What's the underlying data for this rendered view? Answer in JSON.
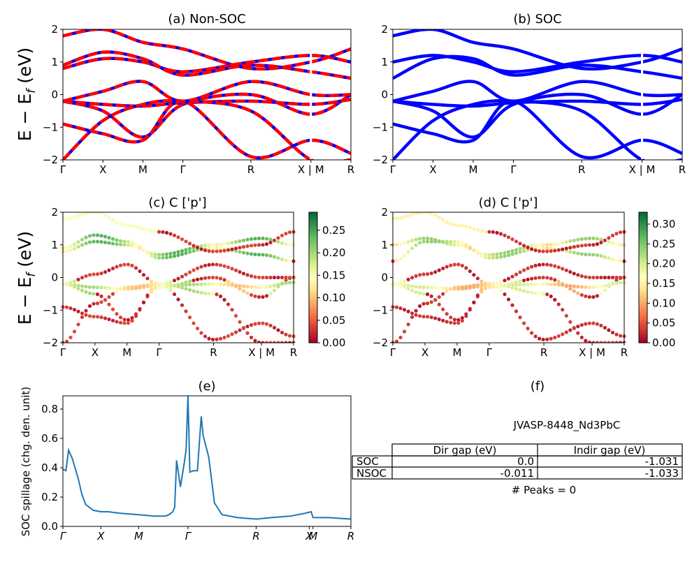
{
  "colors": {
    "red": "#ff0000",
    "blue": "#0000ff",
    "line": "#1f77b4",
    "axis": "#000000"
  },
  "colormap": "RdYlGn",
  "axis_label": "E − E",
  "axis_label_sub": "f",
  "axis_label_unit": " (eV)",
  "kpath_labels": [
    "Γ",
    "X",
    "M",
    "Γ",
    "R",
    "X | M",
    "R"
  ],
  "kpath_labels_e": [
    "Γ",
    "X",
    "M",
    "Γ",
    "R",
    "X",
    "M",
    "R"
  ],
  "panels": {
    "a": {
      "title": "(a) Non-SOC"
    },
    "b": {
      "title": "(b) SOC"
    },
    "c": {
      "title": "(c)  C ['p']",
      "cb_ticks": [
        "0.00",
        "0.05",
        "0.10",
        "0.15",
        "0.20",
        "0.25"
      ]
    },
    "d": {
      "title": "(d) C ['p']",
      "cb_ticks": [
        "0.00",
        "0.05",
        "0.10",
        "0.15",
        "0.20",
        "0.25",
        "0.30"
      ]
    },
    "e": {
      "title": "(e)",
      "ylabel": "SOC spillage (chg. den. unit)"
    },
    "f": {
      "title": "(f)"
    }
  },
  "info": {
    "material": "JVASP-8448_Nd3PbC",
    "headers": [
      "Dir gap (eV)",
      "Indir gap (eV)"
    ],
    "rows": [
      {
        "label": "SOC",
        "dir": "0.0",
        "indir": "-1.031"
      },
      {
        "label": "NSOC",
        "dir": "-0.011",
        "indir": "-1.033"
      }
    ],
    "peaks": "# Peaks = 0"
  },
  "chart_data": [
    {
      "panel": "a",
      "type": "line",
      "title": "(a) Non-SOC",
      "ylabel": "E − E_f (eV)",
      "ylim": [
        -2,
        2
      ],
      "yticks": [
        -2,
        -1,
        0,
        1,
        2
      ],
      "x": [
        0,
        1,
        2,
        3,
        4.7,
        6.2,
        7.2
      ],
      "x_tick_labels": [
        "Γ",
        "X",
        "M",
        "Γ",
        "R",
        "X | M",
        "R"
      ],
      "series": [
        {
          "y": [
            -0.2,
            -0.5,
            -1.3,
            -0.3,
            0.0,
            -0.6,
            0.0
          ]
        },
        {
          "y": [
            -0.2,
            -0.3,
            -0.35,
            -0.25,
            -0.2,
            -0.3,
            -0.15
          ]
        },
        {
          "y": [
            -0.2,
            0.1,
            0.4,
            -0.2,
            0.4,
            0.0,
            0.0
          ]
        },
        {
          "y": [
            0.8,
            1.1,
            1.0,
            0.7,
            1.0,
            1.2,
            1.0
          ]
        },
        {
          "y": [
            0.9,
            1.3,
            1.1,
            0.6,
            0.9,
            0.7,
            0.5
          ]
        },
        {
          "y": [
            -0.9,
            -1.2,
            -1.4,
            -0.2,
            -1.9,
            -1.4,
            -1.8
          ]
        },
        {
          "y": [
            1.8,
            2.0,
            1.6,
            1.4,
            0.8,
            1.0,
            1.4
          ]
        },
        {
          "y": [
            -2.0,
            -0.8,
            -0.3,
            -0.2,
            -0.5,
            -2.0,
            -2.0
          ]
        }
      ]
    },
    {
      "panel": "b",
      "type": "line",
      "title": "(b) SOC",
      "ylim": [
        -2,
        2
      ],
      "yticks": [
        -2,
        -1,
        0,
        1,
        2
      ],
      "x": [
        0,
        1,
        2,
        3,
        4.7,
        6.2,
        7.2
      ],
      "x_tick_labels": [
        "Γ",
        "X",
        "M",
        "Γ",
        "R",
        "X | M",
        "R"
      ],
      "series": [
        {
          "y": [
            -0.2,
            -0.5,
            -1.3,
            -0.3,
            0.0,
            -0.6,
            0.0
          ]
        },
        {
          "y": [
            -0.2,
            -0.3,
            -0.35,
            -0.25,
            -0.2,
            -0.3,
            -0.15
          ]
        },
        {
          "y": [
            -0.2,
            0.1,
            0.4,
            -0.2,
            0.4,
            0.0,
            0.0
          ]
        },
        {
          "y": [
            1.0,
            1.2,
            1.0,
            0.7,
            1.0,
            1.2,
            1.0
          ]
        },
        {
          "y": [
            0.5,
            1.1,
            1.1,
            0.6,
            0.9,
            0.7,
            0.5
          ]
        },
        {
          "y": [
            -0.9,
            -1.2,
            -1.4,
            -0.2,
            -1.9,
            -1.4,
            -1.8
          ]
        },
        {
          "y": [
            1.8,
            2.0,
            1.6,
            1.4,
            0.8,
            1.0,
            1.4
          ]
        },
        {
          "y": [
            -2.0,
            -0.8,
            -0.3,
            -0.2,
            -0.5,
            -2.0,
            -2.0
          ]
        }
      ]
    },
    {
      "panel": "c",
      "type": "scatter",
      "title": "(c)  C ['p']",
      "ylim": [
        -2,
        2
      ],
      "colorbar_range": [
        0,
        0.29
      ],
      "note": "band points colored by C p-orbital weight"
    },
    {
      "panel": "d",
      "type": "scatter",
      "title": "(d) C ['p']",
      "ylim": [
        -2,
        2
      ],
      "colorbar_range": [
        0,
        0.33
      ],
      "note": "band points colored by C p-orbital weight"
    },
    {
      "panel": "e",
      "type": "line",
      "title": "(e)",
      "ylabel": "SOC spillage (chg. den. unit)",
      "ylim": [
        0,
        0.89
      ],
      "yticks": [
        0.0,
        0.2,
        0.4,
        0.6,
        0.8
      ],
      "x_tick_labels": [
        "Γ",
        "X",
        "M",
        "Γ",
        "R",
        "X",
        "M",
        "R"
      ],
      "x_ticks": [
        0,
        1,
        2,
        3.3,
        5.1,
        6.5,
        6.6,
        7.6
      ],
      "x": [
        0,
        0.08,
        0.15,
        0.25,
        0.4,
        0.5,
        0.6,
        0.8,
        1.0,
        1.2,
        1.5,
        2.0,
        2.4,
        2.7,
        2.8,
        2.9,
        2.95,
        3.0,
        3.1,
        3.2,
        3.25,
        3.3,
        3.35,
        3.45,
        3.55,
        3.65,
        3.7,
        3.85,
        4.0,
        4.2,
        4.6,
        5.1,
        5.5,
        6.0,
        6.4,
        6.55,
        6.6,
        7.0,
        7.6
      ],
      "y": [
        0.39,
        0.38,
        0.52,
        0.46,
        0.33,
        0.22,
        0.15,
        0.11,
        0.1,
        0.1,
        0.09,
        0.08,
        0.07,
        0.07,
        0.08,
        0.1,
        0.13,
        0.45,
        0.27,
        0.43,
        0.52,
        0.89,
        0.37,
        0.38,
        0.38,
        0.75,
        0.62,
        0.47,
        0.16,
        0.08,
        0.06,
        0.05,
        0.06,
        0.07,
        0.09,
        0.1,
        0.06,
        0.06,
        0.05
      ]
    }
  ]
}
